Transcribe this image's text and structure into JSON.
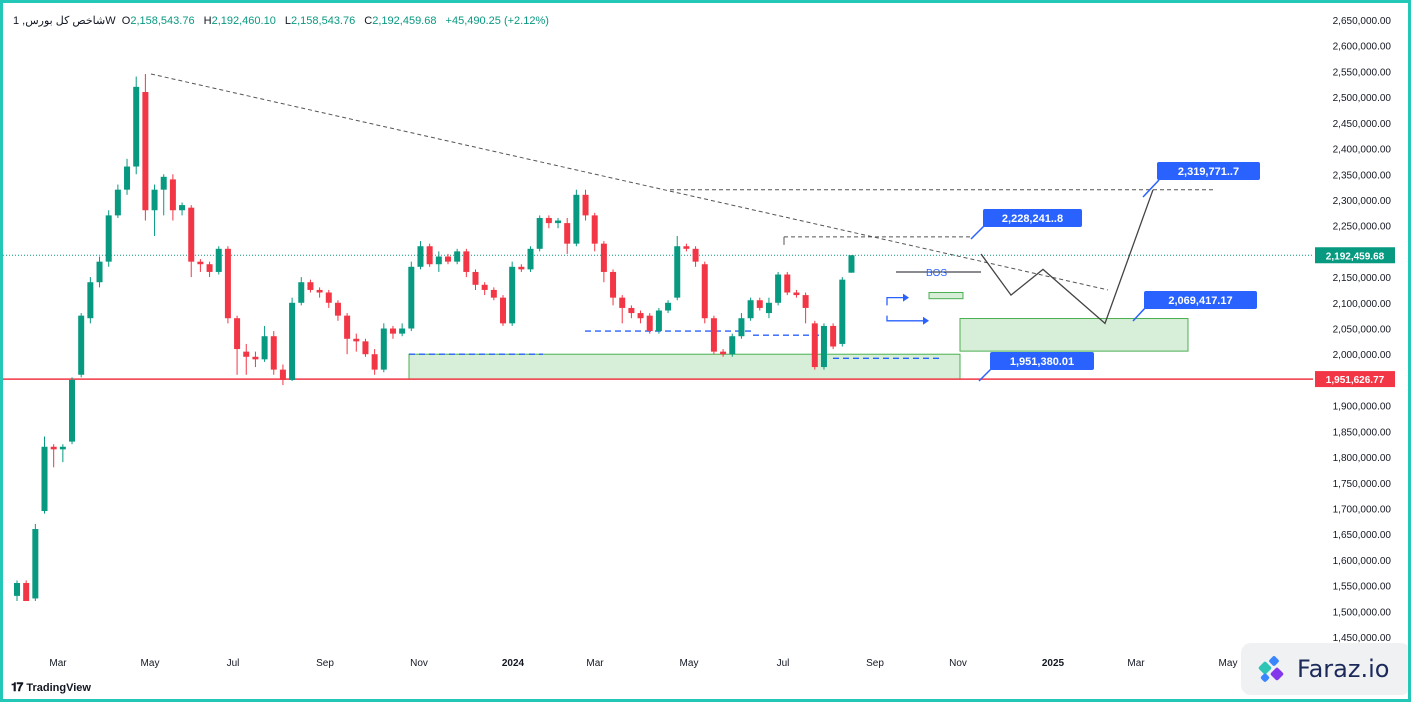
{
  "header": {
    "symbol": "شاخص کل بورس, 1W",
    "o_label": "O",
    "o_value": "2,158,543.76",
    "h_label": "H",
    "h_value": "2,192,460.10",
    "l_label": "L",
    "l_value": "2,158,543.76",
    "c_label": "C",
    "c_value": "2,192,459.68",
    "change": "+45,490.25 (+2.12%)"
  },
  "brand": {
    "tradingview": "TradingView",
    "faraz": "Faraz.io"
  },
  "colors": {
    "up": "#089981",
    "down": "#f23645",
    "blue": "#2962ff",
    "support": "#f23645",
    "zone": "#d7efd9",
    "zone_border": "#4caf50",
    "frame": "#22c7b8"
  },
  "chart_data": {
    "type": "candlestick",
    "timeframe": "1W",
    "ylim": [
      1430000,
      2660000
    ],
    "y_ticks": [
      "2,650,000.00",
      "2,600,000.00",
      "2,550,000.00",
      "2,500,000.00",
      "2,450,000.00",
      "2,400,000.00",
      "2,350,000.00",
      "2,300,000.00",
      "2,250,000.00",
      "2,200,000.00",
      "2,150,000.00",
      "2,100,000.00",
      "2,050,000.00",
      "2,000,000.00",
      "1,950,000.00",
      "1,900,000.00",
      "1,850,000.00",
      "1,800,000.00",
      "1,750,000.00",
      "1,700,000.00",
      "1,650,000.00",
      "1,600,000.00",
      "1,550,000.00",
      "1,500,000.00",
      "1,450,000.00"
    ],
    "x_labels": [
      "Mar",
      "May",
      "Jul",
      "Sep",
      "Nov",
      "2024",
      "Mar",
      "May",
      "Jul",
      "Sep",
      "Nov",
      "2025",
      "Mar",
      "May"
    ],
    "candles": [
      {
        "o": 1530000,
        "h": 1560000,
        "l": 1520000,
        "c": 1555000
      },
      {
        "o": 1555000,
        "h": 1560000,
        "l": 1520000,
        "c": 1520000
      },
      {
        "o": 1525000,
        "h": 1670000,
        "l": 1520000,
        "c": 1660000
      },
      {
        "o": 1695000,
        "h": 1840000,
        "l": 1690000,
        "c": 1820000
      },
      {
        "o": 1820000,
        "h": 1825000,
        "l": 1780000,
        "c": 1815000
      },
      {
        "o": 1815000,
        "h": 1825000,
        "l": 1790000,
        "c": 1820000
      },
      {
        "o": 1830000,
        "h": 1955000,
        "l": 1825000,
        "c": 1950000
      },
      {
        "o": 1960000,
        "h": 2080000,
        "l": 1955000,
        "c": 2075000
      },
      {
        "o": 2070000,
        "h": 2150000,
        "l": 2060000,
        "c": 2140000
      },
      {
        "o": 2140000,
        "h": 2190000,
        "l": 2130000,
        "c": 2180000
      },
      {
        "o": 2180000,
        "h": 2280000,
        "l": 2170000,
        "c": 2270000
      },
      {
        "o": 2270000,
        "h": 2330000,
        "l": 2265000,
        "c": 2320000
      },
      {
        "o": 2320000,
        "h": 2380000,
        "l": 2310000,
        "c": 2365000
      },
      {
        "o": 2365000,
        "h": 2540000,
        "l": 2350000,
        "c": 2520000
      },
      {
        "o": 2510000,
        "h": 2545000,
        "l": 2260000,
        "c": 2280000
      },
      {
        "o": 2280000,
        "h": 2330000,
        "l": 2230000,
        "c": 2320000
      },
      {
        "o": 2320000,
        "h": 2350000,
        "l": 2270000,
        "c": 2345000
      },
      {
        "o": 2340000,
        "h": 2350000,
        "l": 2260000,
        "c": 2280000
      },
      {
        "o": 2280000,
        "h": 2295000,
        "l": 2270000,
        "c": 2290000
      },
      {
        "o": 2285000,
        "h": 2290000,
        "l": 2150000,
        "c": 2180000
      },
      {
        "o": 2180000,
        "h": 2185000,
        "l": 2160000,
        "c": 2175000
      },
      {
        "o": 2175000,
        "h": 2180000,
        "l": 2150000,
        "c": 2160000
      },
      {
        "o": 2160000,
        "h": 2210000,
        "l": 2155000,
        "c": 2205000
      },
      {
        "o": 2205000,
        "h": 2210000,
        "l": 2060000,
        "c": 2070000
      },
      {
        "o": 2070000,
        "h": 2075000,
        "l": 1960000,
        "c": 2010000
      },
      {
        "o": 2005000,
        "h": 2020000,
        "l": 1960000,
        "c": 1995000
      },
      {
        "o": 1995000,
        "h": 2005000,
        "l": 1975000,
        "c": 1990000
      },
      {
        "o": 1990000,
        "h": 2055000,
        "l": 1985000,
        "c": 2035000
      },
      {
        "o": 2035000,
        "h": 2045000,
        "l": 1960000,
        "c": 1970000
      },
      {
        "o": 1970000,
        "h": 1980000,
        "l": 1940000,
        "c": 1950000
      },
      {
        "o": 1950000,
        "h": 2110000,
        "l": 1948000,
        "c": 2100000
      },
      {
        "o": 2100000,
        "h": 2150000,
        "l": 2095000,
        "c": 2140000
      },
      {
        "o": 2140000,
        "h": 2145000,
        "l": 2120000,
        "c": 2125000
      },
      {
        "o": 2125000,
        "h": 2130000,
        "l": 2110000,
        "c": 2120000
      },
      {
        "o": 2120000,
        "h": 2125000,
        "l": 2090000,
        "c": 2100000
      },
      {
        "o": 2100000,
        "h": 2105000,
        "l": 2065000,
        "c": 2075000
      },
      {
        "o": 2075000,
        "h": 2080000,
        "l": 2000000,
        "c": 2030000
      },
      {
        "o": 2030000,
        "h": 2040000,
        "l": 2005000,
        "c": 2025000
      },
      {
        "o": 2025000,
        "h": 2030000,
        "l": 1995000,
        "c": 2000000
      },
      {
        "o": 2000000,
        "h": 2010000,
        "l": 1960000,
        "c": 1970000
      },
      {
        "o": 1970000,
        "h": 2060000,
        "l": 1965000,
        "c": 2050000
      },
      {
        "o": 2050000,
        "h": 2055000,
        "l": 2030000,
        "c": 2040000
      },
      {
        "o": 2040000,
        "h": 2060000,
        "l": 2035000,
        "c": 2050000
      },
      {
        "o": 2050000,
        "h": 2180000,
        "l": 2045000,
        "c": 2170000
      },
      {
        "o": 2170000,
        "h": 2220000,
        "l": 2165000,
        "c": 2210000
      },
      {
        "o": 2210000,
        "h": 2215000,
        "l": 2170000,
        "c": 2175000
      },
      {
        "o": 2175000,
        "h": 2200000,
        "l": 2160000,
        "c": 2190000
      },
      {
        "o": 2190000,
        "h": 2195000,
        "l": 2175000,
        "c": 2180000
      },
      {
        "o": 2180000,
        "h": 2205000,
        "l": 2175000,
        "c": 2200000
      },
      {
        "o": 2200000,
        "h": 2205000,
        "l": 2150000,
        "c": 2160000
      },
      {
        "o": 2160000,
        "h": 2165000,
        "l": 2125000,
        "c": 2135000
      },
      {
        "o": 2135000,
        "h": 2140000,
        "l": 2115000,
        "c": 2125000
      },
      {
        "o": 2125000,
        "h": 2130000,
        "l": 2105000,
        "c": 2110000
      },
      {
        "o": 2110000,
        "h": 2115000,
        "l": 2055000,
        "c": 2060000
      },
      {
        "o": 2060000,
        "h": 2180000,
        "l": 2055000,
        "c": 2170000
      },
      {
        "o": 2170000,
        "h": 2175000,
        "l": 2160000,
        "c": 2165000
      },
      {
        "o": 2165000,
        "h": 2210000,
        "l": 2160000,
        "c": 2205000
      },
      {
        "o": 2205000,
        "h": 2270000,
        "l": 2200000,
        "c": 2265000
      },
      {
        "o": 2265000,
        "h": 2270000,
        "l": 2245000,
        "c": 2255000
      },
      {
        "o": 2255000,
        "h": 2265000,
        "l": 2245000,
        "c": 2260000
      },
      {
        "o": 2255000,
        "h": 2265000,
        "l": 2195000,
        "c": 2215000
      },
      {
        "o": 2215000,
        "h": 2320000,
        "l": 2210000,
        "c": 2310000
      },
      {
        "o": 2310000,
        "h": 2320000,
        "l": 2260000,
        "c": 2270000
      },
      {
        "o": 2270000,
        "h": 2275000,
        "l": 2200000,
        "c": 2215000
      },
      {
        "o": 2215000,
        "h": 2220000,
        "l": 2140000,
        "c": 2160000
      },
      {
        "o": 2160000,
        "h": 2165000,
        "l": 2095000,
        "c": 2110000
      },
      {
        "o": 2110000,
        "h": 2115000,
        "l": 2060000,
        "c": 2090000
      },
      {
        "o": 2090000,
        "h": 2095000,
        "l": 2070000,
        "c": 2080000
      },
      {
        "o": 2080000,
        "h": 2085000,
        "l": 2060000,
        "c": 2070000
      },
      {
        "o": 2075000,
        "h": 2080000,
        "l": 2040000,
        "c": 2045000
      },
      {
        "o": 2045000,
        "h": 2090000,
        "l": 2040000,
        "c": 2085000
      },
      {
        "o": 2085000,
        "h": 2105000,
        "l": 2080000,
        "c": 2100000
      },
      {
        "o": 2110000,
        "h": 2230000,
        "l": 2105000,
        "c": 2210000
      },
      {
        "o": 2210000,
        "h": 2215000,
        "l": 2200000,
        "c": 2205000
      },
      {
        "o": 2205000,
        "h": 2210000,
        "l": 2170000,
        "c": 2180000
      },
      {
        "o": 2175000,
        "h": 2180000,
        "l": 2060000,
        "c": 2070000
      },
      {
        "o": 2070000,
        "h": 2075000,
        "l": 2000000,
        "c": 2005000
      },
      {
        "o": 2005000,
        "h": 2010000,
        "l": 1995000,
        "c": 2000000
      },
      {
        "o": 2000000,
        "h": 2040000,
        "l": 1995000,
        "c": 2035000
      },
      {
        "o": 2035000,
        "h": 2080000,
        "l": 2030000,
        "c": 2070000
      },
      {
        "o": 2070000,
        "h": 2110000,
        "l": 2065000,
        "c": 2105000
      },
      {
        "o": 2105000,
        "h": 2110000,
        "l": 2085000,
        "c": 2090000
      },
      {
        "o": 2080000,
        "h": 2110000,
        "l": 2070000,
        "c": 2100000
      },
      {
        "o": 2100000,
        "h": 2160000,
        "l": 2095000,
        "c": 2155000
      },
      {
        "o": 2155000,
        "h": 2160000,
        "l": 2115000,
        "c": 2120000
      },
      {
        "o": 2120000,
        "h": 2125000,
        "l": 2110000,
        "c": 2115000
      },
      {
        "o": 2115000,
        "h": 2120000,
        "l": 2060000,
        "c": 2090000
      },
      {
        "o": 2060000,
        "h": 2065000,
        "l": 1970000,
        "c": 1975000
      },
      {
        "o": 1975000,
        "h": 2060000,
        "l": 1970000,
        "c": 2055000
      },
      {
        "o": 2055000,
        "h": 2060000,
        "l": 2010000,
        "c": 2015000
      },
      {
        "o": 2020000,
        "h": 2150000,
        "l": 2015000,
        "c": 2145000
      },
      {
        "o": 2158543.76,
        "h": 2192460.1,
        "l": 2158543.76,
        "c": 2192459.68
      }
    ],
    "annotations": {
      "current_price": "2,192,459.68",
      "support_price": "1,951,626.77",
      "target_top": "2,319,771..7",
      "target_mid": "2,228,241..8",
      "zone_label": "2,069,417.17",
      "support_label": "1,951,380.01",
      "bos": "BOS"
    },
    "levels": {
      "support": 1951626.77,
      "current": 2192459.68,
      "top_dashed": 2319771,
      "mid_dashed": 2228241,
      "zone_top": 2069417.17,
      "zone_bottom": 2006000,
      "big_zone_top": 2000000
    }
  }
}
